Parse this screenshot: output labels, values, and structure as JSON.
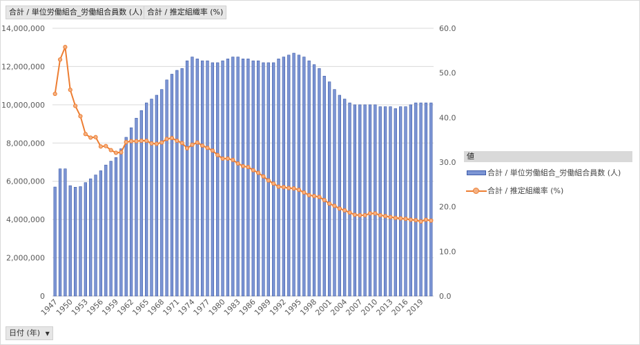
{
  "field_buttons": {
    "values_field_1": "合計 / 単位労働組合_労働組合員数 (人)",
    "values_field_2": "合計 / 推定組織率 (%)",
    "axis_field": "日付 (年)",
    "axis_dropdown_icon": "triangle-down-icon"
  },
  "legend": {
    "title": "値",
    "items": [
      "合計 / 単位労働組合_労働組合員数 (人)",
      "合計 / 推定組織率 (%)"
    ]
  },
  "colors": {
    "bar_fill": "#7c95d4",
    "bar_stroke": "#3c5aa8",
    "line": "#ed7d31",
    "marker_fill": "#f4b183",
    "grid": "#d9d9d9"
  },
  "chart_data": {
    "type": "bar+line",
    "xlabel": "日付 (年)",
    "categories": [
      1947,
      1948,
      1949,
      1950,
      1951,
      1952,
      1953,
      1954,
      1955,
      1956,
      1957,
      1958,
      1959,
      1960,
      1961,
      1962,
      1963,
      1964,
      1965,
      1966,
      1967,
      1968,
      1969,
      1970,
      1971,
      1972,
      1973,
      1974,
      1975,
      1976,
      1977,
      1978,
      1979,
      1980,
      1981,
      1982,
      1983,
      1984,
      1985,
      1986,
      1987,
      1988,
      1989,
      1990,
      1991,
      1992,
      1993,
      1994,
      1995,
      1996,
      1997,
      1998,
      1999,
      2000,
      2001,
      2002,
      2003,
      2004,
      2005,
      2006,
      2007,
      2008,
      2009,
      2010,
      2011,
      2012,
      2013,
      2014,
      2015,
      2016,
      2017,
      2018,
      2019,
      2020,
      2021
    ],
    "x_tick_labels": [
      "1947",
      "1950",
      "1953",
      "1956",
      "1959",
      "1962",
      "1965",
      "1968",
      "1971",
      "1974",
      "1977",
      "1980",
      "1983",
      "1986",
      "1989",
      "1992",
      "1995",
      "1998",
      "2001",
      "2004",
      "2007",
      "2010",
      "2013",
      "2016",
      "2019"
    ],
    "series": [
      {
        "name": "合計 / 単位労働組合_労働組合員数 (人)",
        "type": "bar",
        "axis": "left",
        "values": [
          5700000,
          6650000,
          6650000,
          5770000,
          5690000,
          5720000,
          5930000,
          6130000,
          6330000,
          6550000,
          6850000,
          7050000,
          7240000,
          7700000,
          8300000,
          8800000,
          9300000,
          9700000,
          10100000,
          10300000,
          10500000,
          10800000,
          11300000,
          11600000,
          11800000,
          11900000,
          12300000,
          12500000,
          12400000,
          12300000,
          12300000,
          12200000,
          12200000,
          12300000,
          12400000,
          12500000,
          12500000,
          12400000,
          12400000,
          12300000,
          12300000,
          12200000,
          12200000,
          12200000,
          12400000,
          12500000,
          12600000,
          12700000,
          12600000,
          12500000,
          12300000,
          12100000,
          11900000,
          11500000,
          11200000,
          10800000,
          10500000,
          10300000,
          10100000,
          10000000,
          10000000,
          10000000,
          10000000,
          10000000,
          9900000,
          9900000,
          9900000,
          9800000,
          9900000,
          9900000,
          10000000,
          10100000,
          10100000,
          10100000,
          10100000
        ]
      },
      {
        "name": "合計 / 推定組織率 (%)",
        "type": "line",
        "axis": "right",
        "values": [
          45.3,
          53.0,
          55.8,
          46.2,
          42.6,
          40.3,
          36.3,
          35.5,
          35.6,
          33.5,
          33.6,
          32.7,
          32.1,
          32.2,
          34.5,
          34.7,
          34.7,
          34.8,
          34.8,
          34.2,
          34.1,
          34.4,
          35.2,
          35.4,
          34.8,
          34.3,
          33.1,
          33.9,
          34.4,
          33.7,
          33.2,
          32.6,
          31.6,
          30.8,
          30.8,
          30.5,
          29.7,
          29.1,
          28.9,
          28.2,
          27.6,
          26.8,
          25.9,
          25.2,
          24.5,
          24.4,
          24.2,
          24.1,
          23.8,
          23.2,
          22.6,
          22.4,
          22.2,
          21.5,
          20.7,
          20.2,
          19.6,
          19.2,
          18.7,
          18.2,
          18.1,
          18.1,
          18.5,
          18.5,
          18.1,
          17.9,
          17.7,
          17.5,
          17.4,
          17.3,
          17.1,
          17.0,
          16.7,
          17.1,
          16.9
        ]
      }
    ],
    "y_left": {
      "min": 0,
      "max": 14000000,
      "step": 2000000,
      "tick_labels": [
        "0",
        "2,000,000",
        "4,000,000",
        "6,000,000",
        "8,000,000",
        "10,000,000",
        "12,000,000",
        "14,000,000"
      ]
    },
    "y_right": {
      "min": 0,
      "max": 60,
      "step": 10,
      "tick_labels": [
        "0.0",
        "10.0",
        "20.0",
        "30.0",
        "40.0",
        "50.0",
        "60.0"
      ]
    },
    "grid": true,
    "legend_position": "right"
  }
}
